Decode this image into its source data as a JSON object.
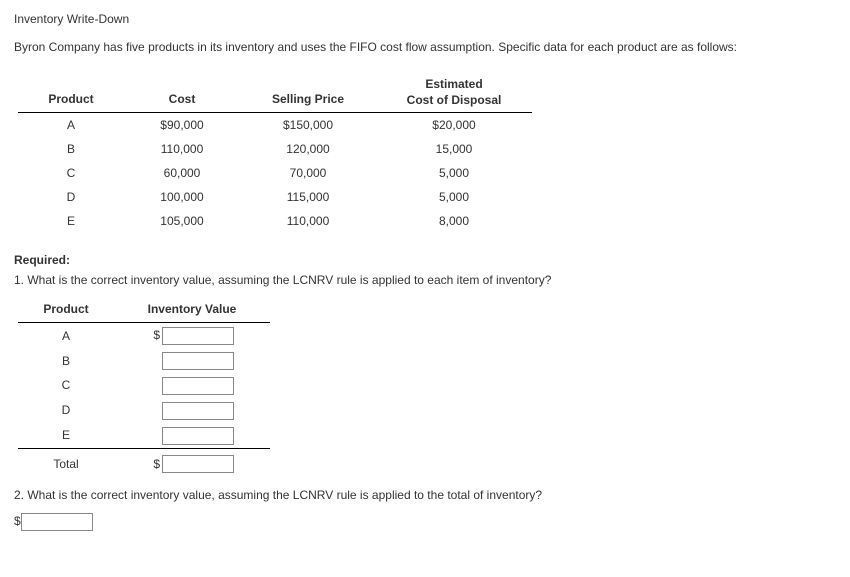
{
  "title": "Inventory Write-Down",
  "intro": "Byron Company has five products in its inventory and uses the FIFO cost flow assumption. Specific data for each product are as follows:",
  "headers": {
    "product": "Product",
    "cost": "Cost",
    "selling_price": "Selling Price",
    "estimated_line1": "Estimated",
    "estimated_line2": "Cost of Disposal"
  },
  "rows": [
    {
      "product": "A",
      "cost": "$90,000",
      "selling_price": "$150,000",
      "disposal": "$20,000"
    },
    {
      "product": "B",
      "cost": "110,000",
      "selling_price": "120,000",
      "disposal": "15,000"
    },
    {
      "product": "C",
      "cost": "60,000",
      "selling_price": "70,000",
      "disposal": "5,000"
    },
    {
      "product": "D",
      "cost": "100,000",
      "selling_price": "115,000",
      "disposal": "5,000"
    },
    {
      "product": "E",
      "cost": "105,000",
      "selling_price": "110,000",
      "disposal": "8,000"
    }
  ],
  "required_label": "Required:",
  "q1_text": "1. What is the correct inventory value, assuming the LCNRV rule is applied to each item of inventory?",
  "inv_headers": {
    "product": "Product",
    "value": "Inventory Value"
  },
  "inv_rows": [
    {
      "product": "A",
      "show_dollar": true
    },
    {
      "product": "B",
      "show_dollar": false
    },
    {
      "product": "C",
      "show_dollar": false
    },
    {
      "product": "D",
      "show_dollar": false
    },
    {
      "product": "E",
      "show_dollar": false
    }
  ],
  "total_label": "Total",
  "dollar_sign": "$",
  "q2_text": "2. What is the correct inventory value, assuming the LCNRV rule is applied to the total of inventory?"
}
